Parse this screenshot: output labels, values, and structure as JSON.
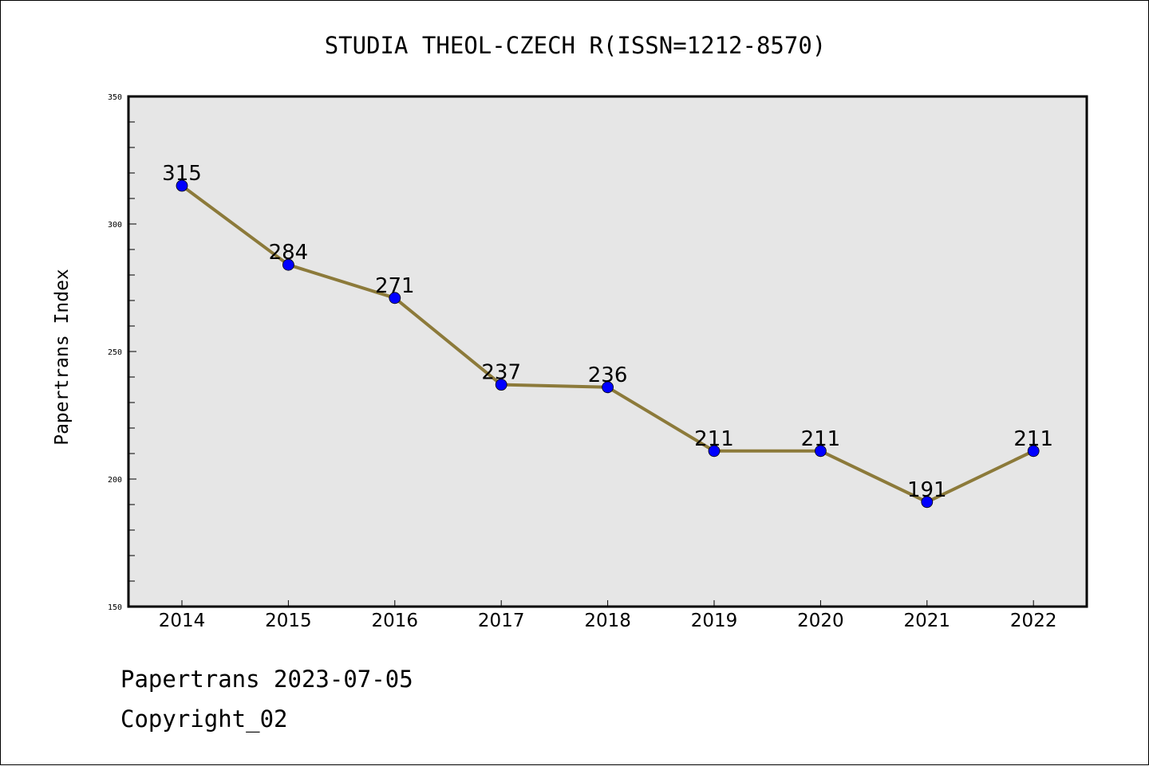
{
  "chart_data": {
    "type": "line",
    "title": "STUDIA THEOL-CZECH R(ISSN=1212-8570)",
    "xlabel": "",
    "ylabel": "Papertrans Index",
    "x": [
      "2014",
      "2015",
      "2016",
      "2017",
      "2018",
      "2019",
      "2020",
      "2021",
      "2022"
    ],
    "series": [
      {
        "values": [
          315,
          284,
          271,
          237,
          236,
          211,
          211,
          191,
          211
        ],
        "data_labels": [
          "315",
          "284",
          "271",
          "237",
          "236",
          "211",
          "211",
          "191",
          "211"
        ]
      }
    ],
    "ylim": [
      150,
      350
    ],
    "yticks": [
      "150",
      "200",
      "250",
      "300",
      "350"
    ],
    "grid": false,
    "colors": {
      "line": "#8c7a3a",
      "marker": "#0000ff",
      "plot_background": "#e6e6e6"
    }
  },
  "footer": {
    "source": "Papertrans 2023-07-05",
    "copyright": "Copyright_02"
  }
}
